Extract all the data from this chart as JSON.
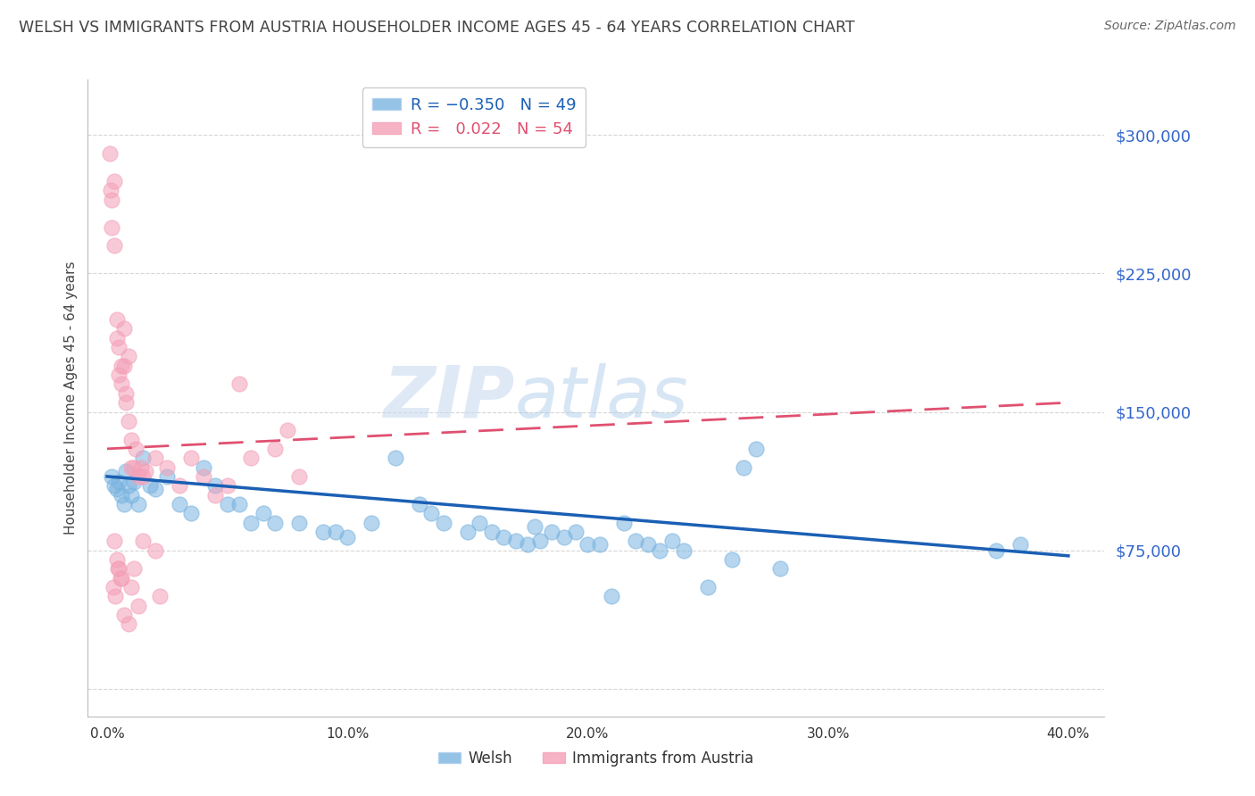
{
  "title": "WELSH VS IMMIGRANTS FROM AUSTRIA HOUSEHOLDER INCOME AGES 45 - 64 YEARS CORRELATION CHART",
  "source": "Source: ZipAtlas.com",
  "ylabel": "Householder Income Ages 45 - 64 years",
  "xlabel_ticks": [
    "0.0%",
    "10.0%",
    "20.0%",
    "30.0%",
    "40.0%"
  ],
  "xlabel_vals": [
    0.0,
    10.0,
    20.0,
    30.0,
    40.0
  ],
  "ytick_vals": [
    0,
    75000,
    150000,
    225000,
    300000
  ],
  "ytick_labels": [
    "",
    "$75,000",
    "$150,000",
    "$225,000",
    "$300,000"
  ],
  "xlim": [
    -0.8,
    41.5
  ],
  "ylim": [
    -15000,
    330000
  ],
  "watermark": "ZIPatlas",
  "welsh_x": [
    0.2,
    0.3,
    0.4,
    0.5,
    0.6,
    0.7,
    0.8,
    0.9,
    1.0,
    1.1,
    1.3,
    1.5,
    1.8,
    2.0,
    2.5,
    3.0,
    3.5,
    4.0,
    4.5,
    5.0,
    5.5,
    6.0,
    6.5,
    7.0,
    8.0,
    9.0,
    9.5,
    10.0,
    11.0,
    12.0,
    13.0,
    13.5,
    14.0,
    15.0,
    15.5,
    16.0,
    16.5,
    17.0,
    17.5,
    18.0,
    19.0,
    20.0,
    21.0,
    22.0,
    22.5,
    23.0,
    25.0,
    26.0,
    28.0,
    37.0,
    21.5,
    23.5,
    19.5,
    17.8,
    18.5,
    20.5,
    24.0,
    27.0,
    26.5,
    38.0
  ],
  "welsh_y": [
    115000,
    110000,
    108000,
    112000,
    105000,
    100000,
    118000,
    110000,
    105000,
    112000,
    100000,
    125000,
    110000,
    108000,
    115000,
    100000,
    95000,
    120000,
    110000,
    100000,
    100000,
    90000,
    95000,
    90000,
    90000,
    85000,
    85000,
    82000,
    90000,
    125000,
    100000,
    95000,
    90000,
    85000,
    90000,
    85000,
    82000,
    80000,
    78000,
    80000,
    82000,
    78000,
    50000,
    80000,
    78000,
    75000,
    55000,
    70000,
    65000,
    75000,
    90000,
    80000,
    85000,
    88000,
    85000,
    78000,
    75000,
    130000,
    120000,
    78000
  ],
  "austria_x": [
    0.1,
    0.15,
    0.2,
    0.2,
    0.3,
    0.3,
    0.4,
    0.4,
    0.5,
    0.5,
    0.6,
    0.6,
    0.7,
    0.7,
    0.8,
    0.8,
    0.9,
    0.9,
    1.0,
    1.0,
    1.1,
    1.2,
    1.3,
    1.4,
    1.5,
    1.6,
    2.0,
    2.5,
    3.0,
    3.5,
    4.0,
    4.5,
    5.0,
    6.0,
    7.0,
    8.0,
    0.3,
    0.4,
    0.5,
    0.6,
    0.7,
    0.9,
    1.0,
    1.1,
    1.3,
    1.5,
    2.0,
    2.2,
    5.5,
    7.5,
    0.25,
    0.35,
    0.45,
    0.55
  ],
  "austria_y": [
    290000,
    270000,
    250000,
    265000,
    275000,
    240000,
    200000,
    190000,
    185000,
    170000,
    175000,
    165000,
    175000,
    195000,
    160000,
    155000,
    180000,
    145000,
    135000,
    120000,
    120000,
    130000,
    115000,
    120000,
    115000,
    118000,
    125000,
    120000,
    110000,
    125000,
    115000,
    105000,
    110000,
    125000,
    130000,
    115000,
    80000,
    70000,
    65000,
    60000,
    40000,
    35000,
    55000,
    65000,
    45000,
    80000,
    75000,
    50000,
    165000,
    140000,
    55000,
    50000,
    65000,
    60000
  ],
  "blue_color": "#7ab4e0",
  "pink_color": "#f4a0b8",
  "blue_line_color": "#1a5fb4",
  "pink_line_color": "#e05070",
  "grid_color": "#cccccc",
  "bg_color": "#ffffff",
  "title_color": "#444444",
  "axis_label_color": "#444444",
  "ytick_color": "#3366cc",
  "source_color": "#666666",
  "blue_trend_x0": 0.0,
  "blue_trend_y0": 115000,
  "blue_trend_x1": 40.0,
  "blue_trend_y1": 72000,
  "pink_trend_x0": 0.0,
  "pink_trend_y0": 130000,
  "pink_trend_x1": 40.0,
  "pink_trend_y1": 155000
}
